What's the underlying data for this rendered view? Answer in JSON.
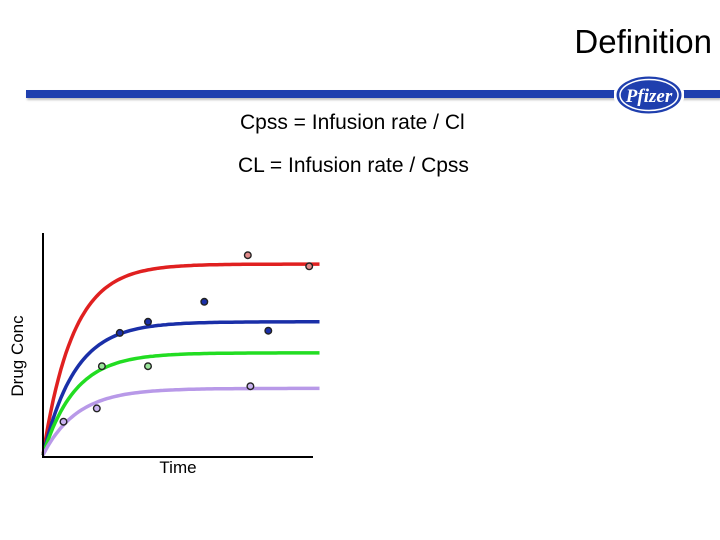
{
  "slide": {
    "title": "Definition",
    "formulas": [
      "Cpss = Infusion rate / Cl",
      "CL = Infusion rate / Cpss"
    ]
  },
  "logo": {
    "text": "Pfizer",
    "colors": {
      "fill": "#1f3fae",
      "text": "#ffffff"
    }
  },
  "rule_color": "#1f3fae",
  "chart": {
    "type": "line",
    "xlabel": "Time",
    "ylabel": "Drug Conc",
    "xlim": [
      0,
      10
    ],
    "ylim": [
      0,
      10
    ],
    "curves": [
      {
        "color": "#e02020",
        "plateau": 8.6,
        "rate": 0.85
      },
      {
        "color": "#1a2fa8",
        "plateau": 6.0,
        "rate": 0.8
      },
      {
        "color": "#22dd22",
        "plateau": 4.6,
        "rate": 0.8
      },
      {
        "color": "#b899e8",
        "plateau": 3.0,
        "rate": 0.75
      }
    ],
    "points": [
      {
        "x": 8.0,
        "y": 9.0,
        "fill": "#e08a8a"
      },
      {
        "x": 10.4,
        "y": 8.5,
        "fill": "#e08a8a"
      },
      {
        "x": 6.3,
        "y": 6.9,
        "fill": "#1a2fa8"
      },
      {
        "x": 4.1,
        "y": 6.0,
        "fill": "#1a2fa8"
      },
      {
        "x": 3.0,
        "y": 5.5,
        "fill": "#1a2fa8"
      },
      {
        "x": 8.8,
        "y": 5.6,
        "fill": "#1a2fa8"
      },
      {
        "x": 4.1,
        "y": 4.0,
        "fill": "#9ae69a"
      },
      {
        "x": 2.3,
        "y": 4.0,
        "fill": "#9ae69a"
      },
      {
        "x": 8.1,
        "y": 3.1,
        "fill": "#c9b3f0"
      },
      {
        "x": 2.1,
        "y": 2.1,
        "fill": "#c9b3f0"
      },
      {
        "x": 0.8,
        "y": 1.5,
        "fill": "#c9b3f0"
      }
    ]
  }
}
